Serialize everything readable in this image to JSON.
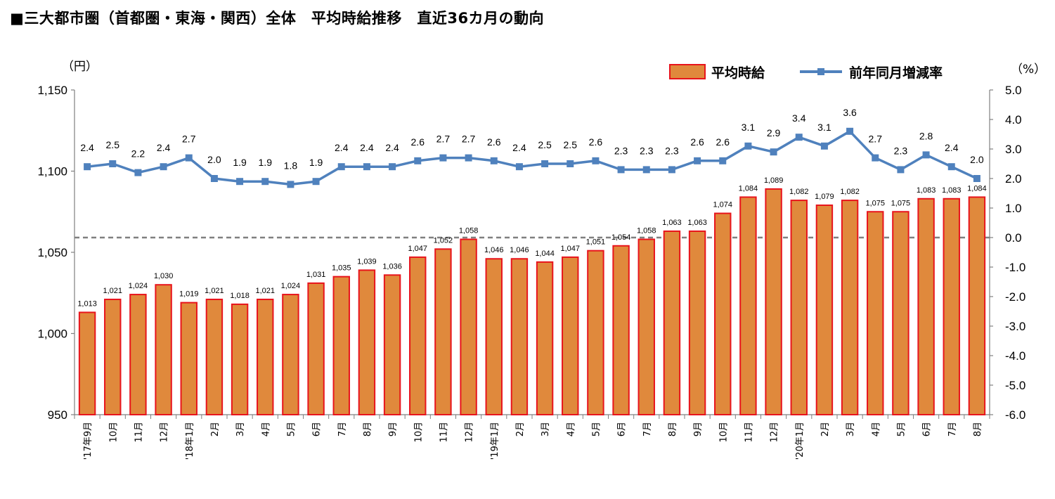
{
  "title": "■三大都市圏（首都圏・東海・関西）全体　平均時給推移　直近36カ月の動向",
  "chart_data": {
    "type": "bar",
    "categories": [
      "'17年9月",
      "10月",
      "11月",
      "12月",
      "'18年1月",
      "2月",
      "3月",
      "4月",
      "5月",
      "6月",
      "7月",
      "8月",
      "9月",
      "10月",
      "11月",
      "12月",
      "'19年1月",
      "2月",
      "3月",
      "4月",
      "5月",
      "6月",
      "7月",
      "8月",
      "9月",
      "10月",
      "11月",
      "12月",
      "'20年1月",
      "2月",
      "3月",
      "4月",
      "5月",
      "6月",
      "7月",
      "8月"
    ],
    "series": [
      {
        "name": "平均時給",
        "type": "bar",
        "axis": "left",
        "color": "#e0893c",
        "edge_color": "#e8141c",
        "values": [
          1013,
          1021,
          1024,
          1030,
          1019,
          1021,
          1018,
          1021,
          1024,
          1031,
          1035,
          1039,
          1036,
          1047,
          1052,
          1058,
          1046,
          1046,
          1044,
          1047,
          1051,
          1054,
          1058,
          1063,
          1063,
          1074,
          1084,
          1089,
          1082,
          1079,
          1082,
          1075,
          1075,
          1083,
          1083,
          1084
        ],
        "labels": [
          "1,013",
          "1,021",
          "1,024",
          "1,030",
          "1,019",
          "1,021",
          "1,018",
          "1,021",
          "1,024",
          "1,031",
          "1,035",
          "1,039",
          "1,036",
          "1,047",
          "1,052",
          "1,058",
          "1,046",
          "1,046",
          "1,044",
          "1,047",
          "1,051",
          "1,054",
          "1,058",
          "1,063",
          "1,063",
          "1,074",
          "1,084",
          "1,089",
          "1,082",
          "1,079",
          "1,082",
          "1,075",
          "1,075",
          "1,083",
          "1,083",
          "1,084"
        ]
      },
      {
        "name": "前年同月増減率",
        "type": "line",
        "axis": "right",
        "color": "#4f81bd",
        "values": [
          2.4,
          2.5,
          2.2,
          2.4,
          2.7,
          2.0,
          1.9,
          1.9,
          1.8,
          1.9,
          2.4,
          2.4,
          2.4,
          2.6,
          2.7,
          2.7,
          2.6,
          2.4,
          2.5,
          2.5,
          2.6,
          2.3,
          2.3,
          2.3,
          2.6,
          2.6,
          3.1,
          2.9,
          3.4,
          3.1,
          3.6,
          2.7,
          2.3,
          2.8,
          2.4,
          2.0
        ],
        "labels": [
          "2.4",
          "2.5",
          "2.2",
          "2.4",
          "2.7",
          "2.0",
          "1.9",
          "1.9",
          "1.8",
          "1.9",
          "2.4",
          "2.4",
          "2.4",
          "2.6",
          "2.7",
          "2.7",
          "2.6",
          "2.4",
          "2.5",
          "2.5",
          "2.6",
          "2.3",
          "2.3",
          "2.3",
          "2.6",
          "2.6",
          "3.1",
          "2.9",
          "3.4",
          "3.1",
          "3.6",
          "2.7",
          "2.3",
          "2.8",
          "2.4",
          "2.0"
        ]
      }
    ],
    "y_left": {
      "label": "（円）",
      "ylim": [
        950,
        1150
      ],
      "ticks": [
        "950",
        "1,000",
        "1,050",
        "1,100",
        "1,150"
      ],
      "tick_values": [
        950,
        1000,
        1050,
        1100,
        1150
      ]
    },
    "y_right": {
      "label": "（%）",
      "ylim": [
        -6.0,
        5.0
      ],
      "ticks": [
        "-6.0",
        "-5.0",
        "-4.0",
        "-3.0",
        "-2.0",
        "-1.0",
        "0.0",
        "1.0",
        "2.0",
        "3.0",
        "4.0",
        "5.0"
      ],
      "tick_values": [
        -6,
        -5,
        -4,
        -3,
        -2,
        -1,
        0,
        1,
        2,
        3,
        4,
        5
      ]
    },
    "reference_line": {
      "axis": "right",
      "value": 0,
      "style": "dashed",
      "color": "#808080"
    },
    "legend_position": "top-right",
    "grid": false
  }
}
